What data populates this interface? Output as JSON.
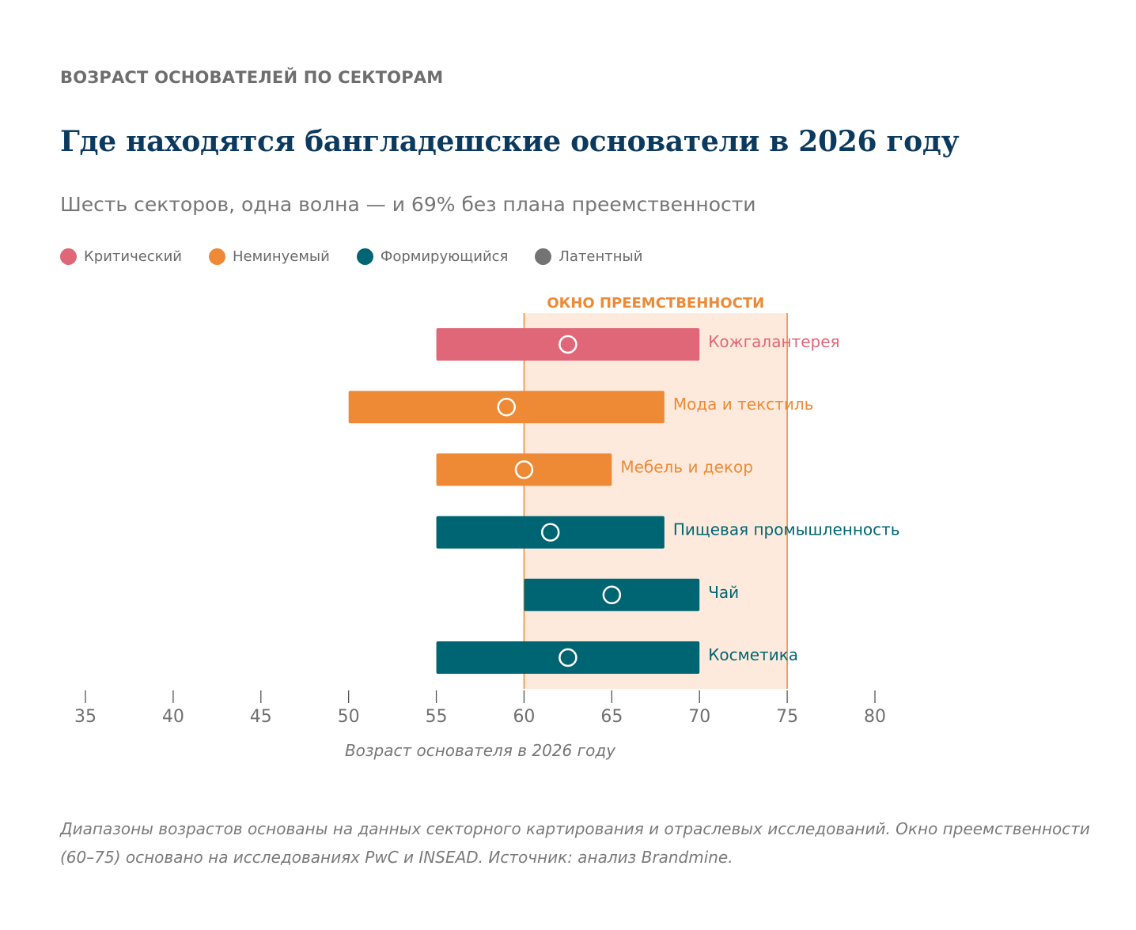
{
  "header": {
    "kicker": "ВОЗРАСТ ОСНОВАТЕЛЕЙ ПО СЕКТОРАМ",
    "title": "Где находятся бангладешские основатели в 2026 году",
    "subtitle": "Шесть секторов, одна волна — и 69% без плана преемственности"
  },
  "legend": [
    {
      "label": "Критический",
      "color": "#e06778"
    },
    {
      "label": "Неминуемый",
      "color": "#ee8a35"
    },
    {
      "label": "Формирующийся",
      "color": "#006572"
    },
    {
      "label": "Латентный",
      "color": "#737373"
    }
  ],
  "chart_data": {
    "type": "range-bar",
    "xlabel": "Возраст основателя в 2026 году",
    "xlim": [
      35,
      80
    ],
    "xticks": [
      35,
      40,
      45,
      50,
      55,
      60,
      65,
      70,
      75,
      80
    ],
    "window": {
      "label": "ОКНО ПРЕЕМСТВЕННОСТИ",
      "from": 60,
      "to": 75,
      "color": "#ee8a35",
      "fill": "#fdeadc"
    },
    "series": [
      {
        "name": "Кожгалантерея",
        "start": 55,
        "end": 70,
        "median": 62.5,
        "status": "Критический",
        "color": "#e06778"
      },
      {
        "name": "Мода и текстиль",
        "start": 50,
        "end": 68,
        "median": 59,
        "status": "Неминуемый",
        "color": "#ee8a35"
      },
      {
        "name": "Мебель и декор",
        "start": 55,
        "end": 65,
        "median": 60,
        "status": "Неминуемый",
        "color": "#ee8a35"
      },
      {
        "name": "Пищевая промышленность",
        "start": 55,
        "end": 68,
        "median": 61.5,
        "status": "Формирующийся",
        "color": "#006572"
      },
      {
        "name": "Чай",
        "start": 60,
        "end": 70,
        "median": 65,
        "status": "Формирующийся",
        "color": "#006572"
      },
      {
        "name": "Косметика",
        "start": 55,
        "end": 70,
        "median": 62.5,
        "status": "Формирующийся",
        "color": "#006572"
      }
    ]
  },
  "footnote": {
    "line1": "Диапазоны возрастов основаны на данных секторного картирования и отраслевых исследований. Окно преемственности",
    "line2": "(60–75) основано на исследованиях PwC и INSEAD. Источник: анализ Brandmine."
  }
}
